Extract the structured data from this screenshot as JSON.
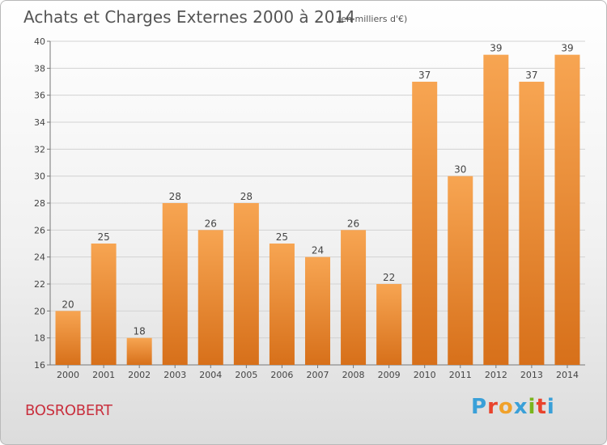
{
  "chart_data": {
    "type": "bar",
    "title": "Achats et Charges Externes 2000 à 2014",
    "subtitle": "(en milliers d'€)",
    "categories": [
      "2000",
      "2001",
      "2002",
      "2003",
      "2004",
      "2005",
      "2006",
      "2007",
      "2008",
      "2009",
      "2010",
      "2011",
      "2012",
      "2013",
      "2014"
    ],
    "values": [
      20,
      25,
      18,
      28,
      26,
      28,
      25,
      24,
      26,
      22,
      37,
      30,
      39,
      37,
      39
    ],
    "ylim": [
      16,
      40
    ],
    "yticks": [
      16,
      18,
      20,
      22,
      24,
      26,
      28,
      30,
      32,
      34,
      36,
      38,
      40
    ],
    "grid": true,
    "bar_color_light": "#f7a552",
    "bar_color_dark": "#d7701a"
  },
  "commune": "BOSROBERT",
  "logo": {
    "text": "Proxiti",
    "colors": [
      "#3aa0d8",
      "#e9432c",
      "#f0a12a",
      "#3aa0d8",
      "#7ab51d",
      "#e9432c",
      "#3aa0d8"
    ]
  }
}
